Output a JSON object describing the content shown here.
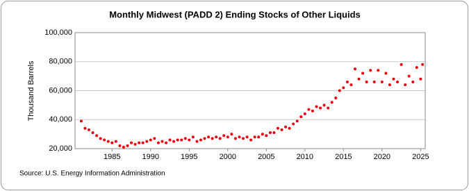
{
  "chart_data": {
    "type": "scatter",
    "title": "Monthly Midwest (PADD 2) Ending Stocks of Other Liquids",
    "y_label": "Thousand Barrels",
    "source": "Source: U.S. Energy Information Administration",
    "color": "#e8000b",
    "grid": true,
    "xlim": [
      1980.2,
      2025.6
    ],
    "xticks": [
      1985,
      1990,
      1995,
      2000,
      2005,
      2010,
      2015,
      2020,
      2025
    ],
    "ylim": [
      20000,
      100000
    ],
    "yticks": [
      {
        "value": 20000,
        "label": "20,000"
      },
      {
        "value": 40000,
        "label": "40,000"
      },
      {
        "value": 60000,
        "label": "60,000"
      },
      {
        "value": 80000,
        "label": "80,000"
      },
      {
        "value": 100000,
        "label": "100,000"
      }
    ],
    "x": [
      1981.0,
      1981.5,
      1982.0,
      1982.5,
      1983.0,
      1983.5,
      1984.0,
      1984.5,
      1985.0,
      1985.5,
      1986.0,
      1986.5,
      1987.0,
      1987.5,
      1988.0,
      1988.5,
      1989.0,
      1989.5,
      1990.0,
      1990.5,
      1991.0,
      1991.5,
      1992.0,
      1992.5,
      1993.0,
      1993.5,
      1994.0,
      1994.5,
      1995.0,
      1995.5,
      1996.0,
      1996.5,
      1997.0,
      1997.5,
      1998.0,
      1998.5,
      1999.0,
      1999.5,
      2000.0,
      2000.5,
      2001.0,
      2001.5,
      2002.0,
      2002.5,
      2003.0,
      2003.5,
      2004.0,
      2004.5,
      2005.0,
      2005.5,
      2006.0,
      2006.5,
      2007.0,
      2007.5,
      2008.0,
      2008.5,
      2009.0,
      2009.5,
      2010.0,
      2010.5,
      2011.0,
      2011.5,
      2012.0,
      2012.5,
      2013.0,
      2013.5,
      2014.0,
      2014.5,
      2015.0,
      2015.5,
      2016.0,
      2016.5,
      2017.0,
      2017.5,
      2018.0,
      2018.5,
      2019.0,
      2019.5,
      2020.0,
      2020.5,
      2021.0,
      2021.5,
      2022.0,
      2022.5,
      2023.0,
      2023.5,
      2024.0,
      2024.5,
      2025.0,
      2025.25
    ],
    "values": [
      39000,
      34000,
      33000,
      31000,
      29000,
      27000,
      26000,
      25000,
      24000,
      25000,
      22000,
      21000,
      22000,
      24000,
      23000,
      24000,
      24000,
      25000,
      26000,
      27000,
      24000,
      25000,
      24000,
      26000,
      25000,
      26000,
      26000,
      27000,
      26000,
      28000,
      25000,
      26000,
      27000,
      28000,
      27000,
      28000,
      27000,
      29000,
      28000,
      30000,
      27000,
      28000,
      27000,
      28000,
      26000,
      28000,
      28000,
      30000,
      29000,
      31000,
      31000,
      34000,
      33000,
      35000,
      34000,
      37000,
      39000,
      42000,
      44000,
      47000,
      46000,
      49000,
      48000,
      50000,
      48000,
      52000,
      55000,
      60000,
      62000,
      66000,
      64000,
      75000,
      68000,
      72000,
      66000,
      74000,
      66000,
      74000,
      66000,
      72000,
      64000,
      68000,
      66000,
      78000,
      64000,
      70000,
      66000,
      76000,
      68000,
      78000
    ]
  }
}
